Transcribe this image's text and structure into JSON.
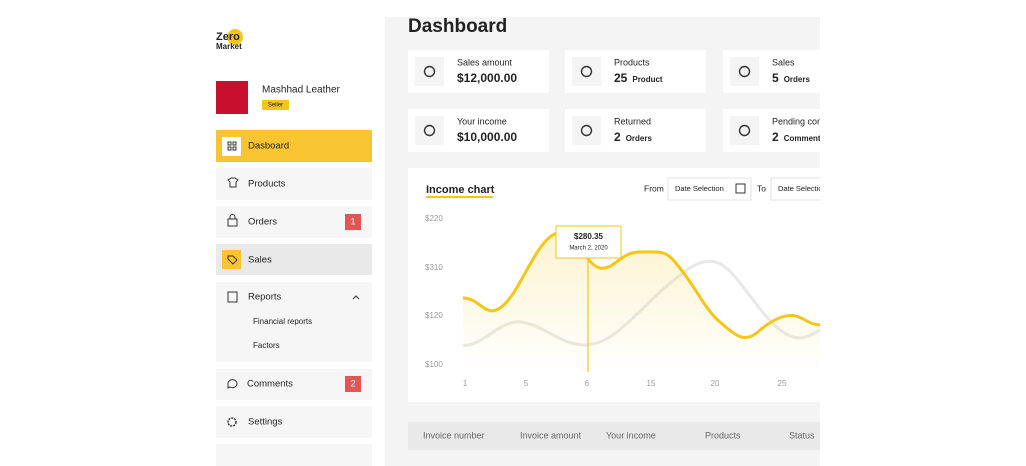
{
  "logo": {
    "line1": "Zero",
    "line2": "Market"
  },
  "profile": {
    "name": "Mashhad Leather",
    "role": "Seller"
  },
  "menu": [
    {
      "label": "Dasboard"
    },
    {
      "label": "Products"
    },
    {
      "label": "Orders",
      "badge": "1"
    },
    {
      "label": "Sales"
    },
    {
      "label": "Reports",
      "children": [
        "Financial reports",
        "Factors"
      ]
    },
    {
      "label": "Comments",
      "badge": "2"
    },
    {
      "label": "Settings"
    }
  ],
  "header": {
    "title": "Dashboard"
  },
  "cards": [
    {
      "label": "Sales amount",
      "value": "$12,000.00"
    },
    {
      "label": "Products",
      "value": "25",
      "unit": "Product"
    },
    {
      "label": "Sales",
      "value": "5",
      "unit": "Orders"
    },
    {
      "label": "Your income",
      "value": "$10,000.00"
    },
    {
      "label": "Returned",
      "value": "2",
      "unit": "Orders"
    },
    {
      "label": "Pending com",
      "value": "2",
      "unit": "Comment"
    }
  ],
  "chart": {
    "title": "Income chart",
    "from": "From",
    "to": "To",
    "date_from": "Date Selection",
    "date_to": "Date Selection",
    "y_labels": [
      "$220",
      "$310",
      "$120",
      "$100"
    ],
    "x_labels": [
      "1",
      "5",
      "6",
      "15",
      "20",
      "25"
    ],
    "tooltip": {
      "value": "$280.35",
      "date": "March 2, 2020"
    }
  },
  "table": {
    "columns": [
      "Invoice number",
      "Invoice amount",
      "Your income",
      "Products",
      "Status"
    ]
  }
}
